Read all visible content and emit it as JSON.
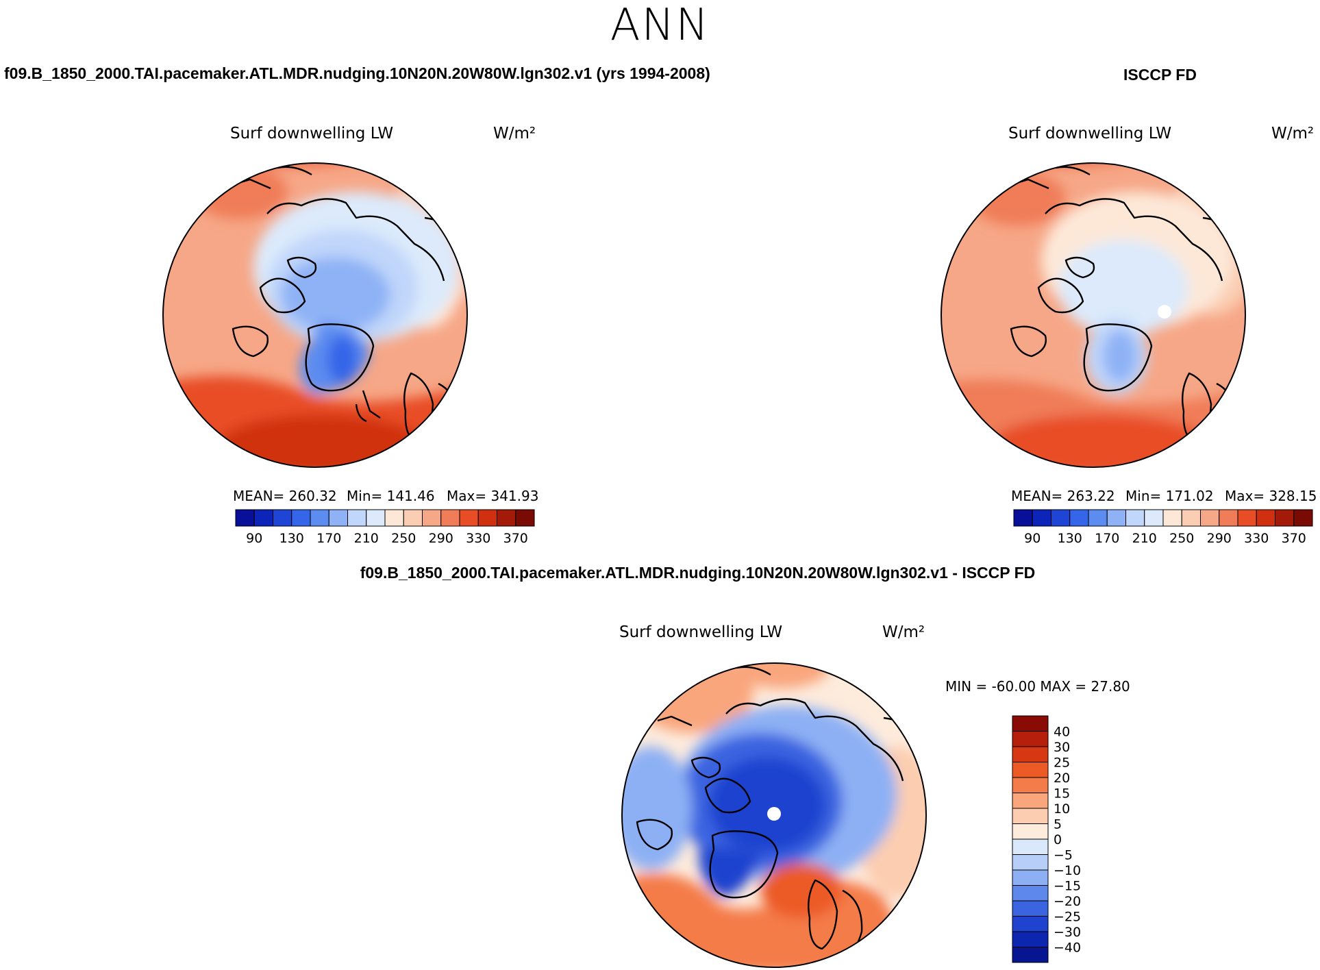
{
  "figure": {
    "title": "ANN"
  },
  "panels": {
    "model": {
      "case_title": "f09.B_1850_2000.TAI.pacemaker.ATL.MDR.nudging.10N20N.20W80W.lgn302.v1 (yrs 1994-2008)",
      "variable_label": "Surf  downwelling  LW",
      "units_label": "W/m²",
      "stats": {
        "mean": "MEAN=  260.32",
        "min": "Min=  141.46",
        "max": "Max=  341.93"
      }
    },
    "obs": {
      "case_title": "ISCCP FD",
      "variable_label": "Surf  downwelling  LW",
      "units_label": "W/m²",
      "stats": {
        "mean": "MEAN=  263.22",
        "min": "Min=  171.02",
        "max": "Max=  328.15"
      }
    },
    "diff": {
      "case_title": "f09.B_1850_2000.TAI.pacemaker.ATL.MDR.nudging.10N20N.20W80W.lgn302.v1 - ISCCP FD",
      "variable_label": "Surf  downwelling  LW",
      "units_label": "W/m²",
      "stats": {
        "range": "MIN =  -60.00  MAX =   27.80"
      }
    }
  },
  "chart_data": [
    {
      "type": "polar-contour-map",
      "title": "f09.B_1850_2000.TAI.pacemaker.ATL.MDR.nudging.10N20N.20W80W.lgn302.v1 (yrs 1994-2008)",
      "variable": "Surf downwelling LW",
      "units": "W/m²",
      "mean": 260.32,
      "min": 141.46,
      "max": 341.93,
      "colorbar": {
        "orientation": "horizontal",
        "labels": [
          "90",
          "130",
          "170",
          "210",
          "250",
          "290",
          "330",
          "370"
        ],
        "colors": [
          "#08109a",
          "#0c25b8",
          "#1e45d6",
          "#3565e8",
          "#5c8cf0",
          "#8fb2f6",
          "#c0d6fa",
          "#dceafb",
          "#fde8d8",
          "#fbcdb2",
          "#f6a787",
          "#f07d58",
          "#e84d26",
          "#d03010",
          "#a41a08",
          "#7a0a04"
        ]
      }
    },
    {
      "type": "polar-contour-map",
      "title": "ISCCP FD",
      "variable": "Surf downwelling LW",
      "units": "W/m²",
      "mean": 263.22,
      "min": 171.02,
      "max": 328.15,
      "colorbar": {
        "orientation": "horizontal",
        "labels": [
          "90",
          "130",
          "170",
          "210",
          "250",
          "290",
          "330",
          "370"
        ],
        "colors": [
          "#08109a",
          "#0c25b8",
          "#1e45d6",
          "#3565e8",
          "#5c8cf0",
          "#8fb2f6",
          "#c0d6fa",
          "#dceafb",
          "#fde8d8",
          "#fbcdb2",
          "#f6a787",
          "#f07d58",
          "#e84d26",
          "#d03010",
          "#a41a08",
          "#7a0a04"
        ]
      }
    },
    {
      "type": "polar-contour-map",
      "title": "f09.B_1850_2000.TAI.pacemaker.ATL.MDR.nudging.10N20N.20W80W.lgn302.v1 - ISCCP FD",
      "variable": "Surf downwelling LW",
      "units": "W/m²",
      "min": -60.0,
      "max": 27.8,
      "colorbar": {
        "orientation": "vertical",
        "labels": [
          "40",
          "30",
          "25",
          "20",
          "15",
          "10",
          "5",
          "0",
          "−5",
          "−10",
          "−15",
          "−20",
          "−25",
          "−30",
          "−40"
        ],
        "colors": [
          "#8a0a06",
          "#b51f0b",
          "#d73814",
          "#ec5a26",
          "#f47c4a",
          "#f9a67d",
          "#fccdb0",
          "#fdebdc",
          "#d9e8fb",
          "#b7cff8",
          "#8db0f4",
          "#5e88ec",
          "#3a64e0",
          "#1f43cf",
          "#0d26b0",
          "#081591"
        ]
      }
    }
  ]
}
